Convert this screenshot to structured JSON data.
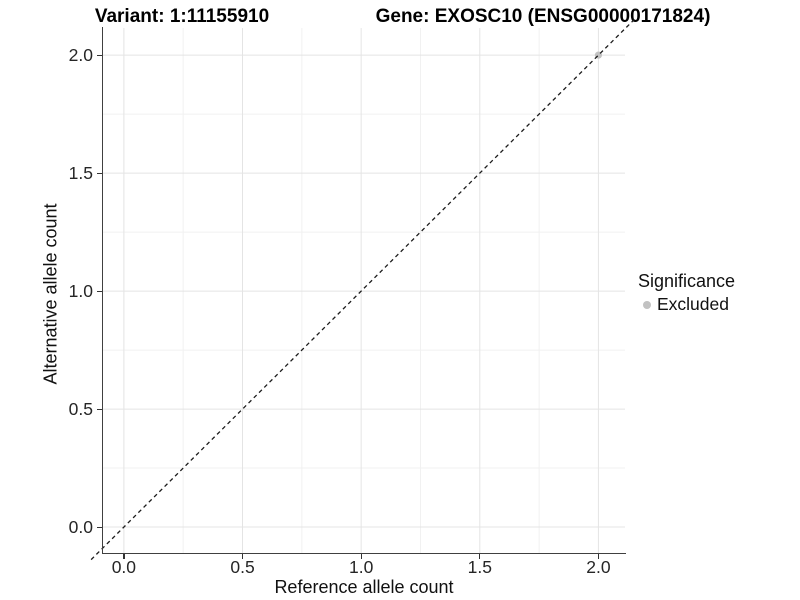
{
  "chart_data": {
    "type": "scatter",
    "titles": [
      {
        "text": "Variant: 1:11155910"
      },
      {
        "text": "Gene: EXOSC10 (ENSG00000171824)"
      }
    ],
    "xlabel": "Reference allele count",
    "ylabel": "Alternative allele count",
    "xticks": [
      0.0,
      0.5,
      1.0,
      1.5,
      2.0
    ],
    "yticks": [
      0.0,
      0.5,
      1.0,
      1.5,
      2.0
    ],
    "xlim": [
      -0.088,
      2.112
    ],
    "ylim": [
      -0.11,
      2.115
    ],
    "minor_step": 0.25,
    "grid": true,
    "points": [
      {
        "x": 2.0,
        "y": 2.0,
        "series": "Excluded",
        "color": "#c2c2c2"
      }
    ],
    "reference_line": {
      "type": "identity",
      "slope": 1,
      "intercept": 0,
      "style": "dashed",
      "color": "#1c1c1c"
    },
    "legend": {
      "title": "Significance",
      "position": "right",
      "items": [
        {
          "label": "Excluded",
          "color": "#c2c2c2"
        }
      ]
    },
    "colors": {
      "grid_major": "#e4e4e4",
      "grid_minor": "#f1f1f1",
      "axis": "#404040",
      "tick": "#333333"
    }
  }
}
